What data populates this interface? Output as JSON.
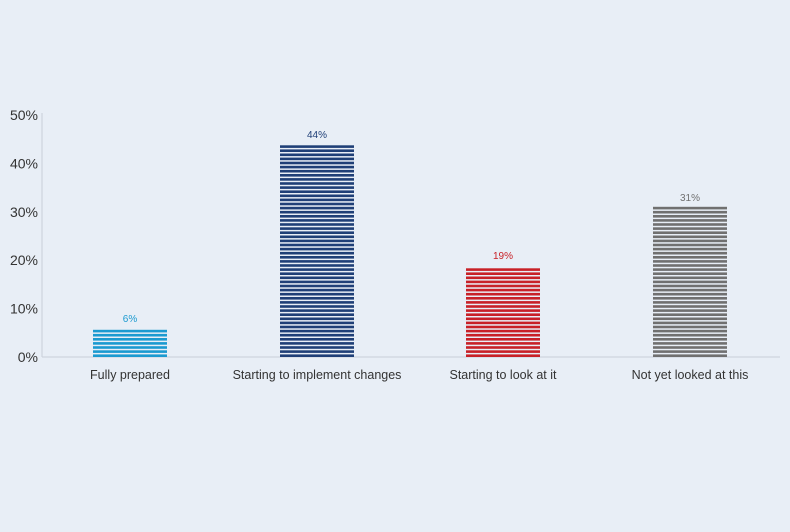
{
  "chart_data": {
    "type": "bar",
    "categories": [
      "Fully prepared",
      "Starting to implement changes",
      "Starting to look at it",
      "Not yet looked at this"
    ],
    "values": [
      6,
      44,
      19,
      31
    ],
    "data_labels": [
      "6%",
      "44%",
      "19%",
      "31%"
    ],
    "colors": [
      "#1b9ad0",
      "#1f3f77",
      "#c82027",
      "#707070"
    ],
    "title": "",
    "xlabel": "",
    "ylabel": "",
    "ylim": [
      0,
      50
    ],
    "yticks": [
      0,
      10,
      20,
      30,
      40,
      50
    ],
    "ytick_labels": [
      "0%",
      "10%",
      "20%",
      "30%",
      "40%",
      "50%"
    ],
    "bar_style": "horizontal-stripes",
    "grid": false,
    "legend": "none"
  }
}
